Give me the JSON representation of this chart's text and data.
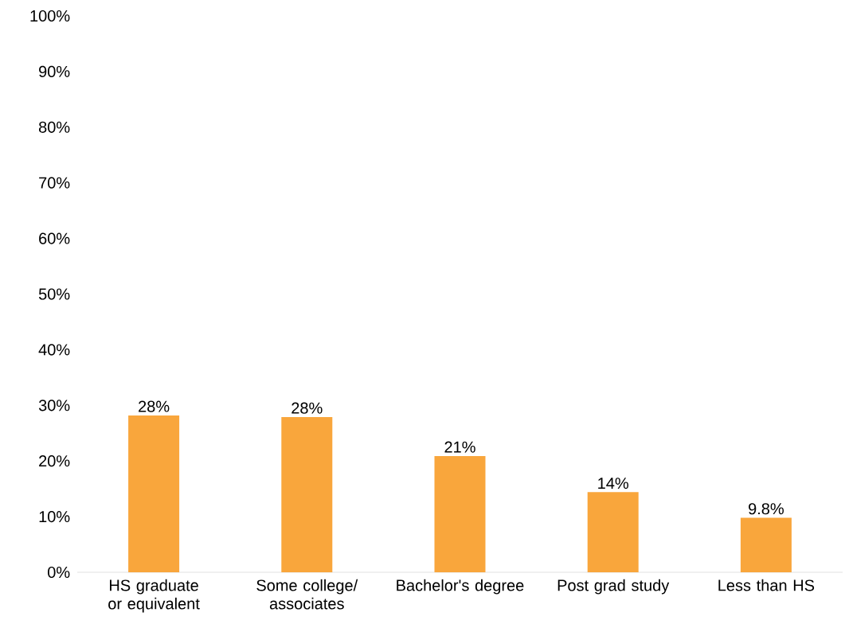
{
  "chart_data": {
    "type": "bar",
    "categories": [
      "HS graduate or equivalent",
      "Some college/ associates",
      "Bachelor's degree",
      "Post grad study",
      "Less than HS"
    ],
    "values": [
      28.2,
      27.9,
      20.9,
      14.4,
      9.8
    ],
    "value_labels": [
      "28%",
      "28%",
      "21%",
      "14%",
      "9.8%"
    ],
    "color": "#f9a63c",
    "ylim": [
      0,
      100
    ],
    "yticks": [
      {
        "value": 0,
        "label": "0%"
      },
      {
        "value": 10,
        "label": "10%"
      },
      {
        "value": 20,
        "label": "20%"
      },
      {
        "value": 30,
        "label": "30%"
      },
      {
        "value": 40,
        "label": "40%"
      },
      {
        "value": 50,
        "label": "50%"
      },
      {
        "value": 60,
        "label": "60%"
      },
      {
        "value": 70,
        "label": "70%"
      },
      {
        "value": 80,
        "label": "80%"
      },
      {
        "value": 90,
        "label": "90%"
      },
      {
        "value": 100,
        "label": "100%"
      }
    ],
    "grid": false
  }
}
